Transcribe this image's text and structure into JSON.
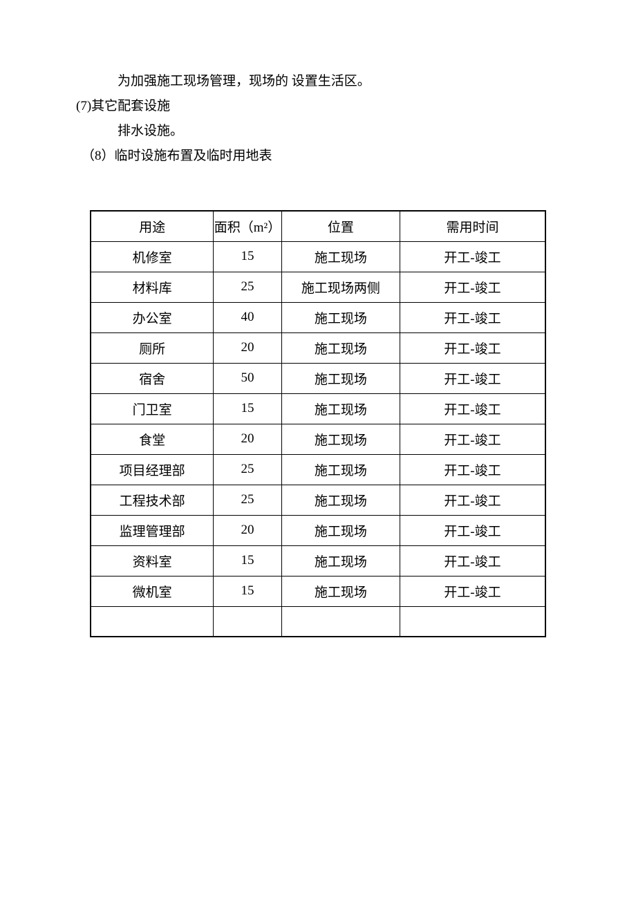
{
  "paragraphs": {
    "line1": "为加强施工现场管理，现场的 设置生活区。",
    "line2": "(7)其它配套设施",
    "line3": "排水设施。",
    "line4": "（8）临时设施布置及临时用地表"
  },
  "table": {
    "columns": [
      {
        "key": "use",
        "label": "用途",
        "class": "col-use"
      },
      {
        "key": "area",
        "label": "面积（m²）",
        "class": "col-area"
      },
      {
        "key": "loc",
        "label": "位置",
        "class": "col-loc"
      },
      {
        "key": "time",
        "label": "需用时间",
        "class": "col-time"
      }
    ],
    "rows": [
      {
        "use": "机修室",
        "area": "15",
        "loc": "施工现场",
        "time": "开工-竣工"
      },
      {
        "use": "材料库",
        "area": "25",
        "loc": "施工现场两侧",
        "time": "开工-竣工"
      },
      {
        "use": "办公室",
        "area": "40",
        "loc": "施工现场",
        "time": "开工-竣工"
      },
      {
        "use": "厕所",
        "area": "20",
        "loc": "施工现场",
        "time": "开工-竣工"
      },
      {
        "use": "宿舍",
        "area": "50",
        "loc": "施工现场",
        "time": "开工-竣工"
      },
      {
        "use": "门卫室",
        "area": "15",
        "loc": "施工现场",
        "time": "开工-竣工"
      },
      {
        "use": "食堂",
        "area": "20",
        "loc": "施工现场",
        "time": "开工-竣工"
      },
      {
        "use": "项目经理部",
        "area": "25",
        "loc": "施工现场",
        "time": "开工-竣工"
      },
      {
        "use": "工程技术部",
        "area": "25",
        "loc": "施工现场",
        "time": "开工-竣工"
      },
      {
        "use": "监理管理部",
        "area": "20",
        "loc": "施工现场",
        "time": "开工-竣工"
      },
      {
        "use": "资料室",
        "area": "15",
        "loc": "施工现场",
        "time": "开工-竣工"
      },
      {
        "use": "微机室",
        "area": "15",
        "loc": "施工现场",
        "time": "开工-竣工"
      },
      {
        "use": "",
        "area": "",
        "loc": "",
        "time": ""
      }
    ]
  }
}
